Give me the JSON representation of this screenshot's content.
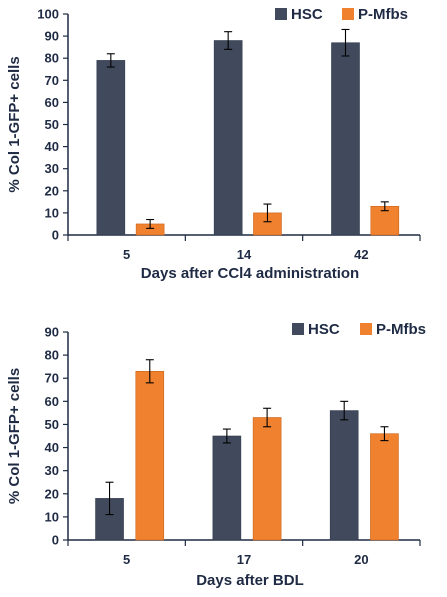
{
  "colors": {
    "hsc": "#404a5c",
    "pmfbs": "#f0812e",
    "axis": "#1f2b44",
    "text": "#1f2b44"
  },
  "chart_data": [
    {
      "type": "bar",
      "categories": [
        "5",
        "14",
        "42"
      ],
      "series": [
        {
          "name": "HSC",
          "values": [
            79,
            88,
            87
          ],
          "errors": [
            3,
            4,
            6
          ]
        },
        {
          "name": "P-Mfbs",
          "values": [
            5,
            10,
            13
          ],
          "errors": [
            2,
            4,
            2
          ]
        }
      ],
      "title": "",
      "xlabel": "Days after CCl4 administration",
      "ylabel": "% Col 1-GFP+ cells",
      "ylim": [
        0,
        100
      ],
      "yticks": [
        "0",
        "10",
        "20",
        "30",
        "40",
        "50",
        "60",
        "70",
        "80",
        "90",
        "100"
      ],
      "grid": false,
      "legend": "top-right"
    },
    {
      "type": "bar",
      "categories": [
        "5",
        "17",
        "20"
      ],
      "series": [
        {
          "name": "HSC",
          "values": [
            18,
            45,
            56
          ],
          "errors": [
            7,
            3,
            4
          ]
        },
        {
          "name": "P-Mfbs",
          "values": [
            73,
            53,
            46
          ],
          "errors": [
            5,
            4,
            3
          ]
        }
      ],
      "title": "",
      "xlabel": "Days after BDL",
      "ylabel": "% Col 1-GFP+ cells",
      "ylim": [
        0,
        90
      ],
      "yticks": [
        "0",
        "10",
        "20",
        "30",
        "40",
        "50",
        "60",
        "70",
        "80",
        "90"
      ],
      "grid": false,
      "legend": "top-right"
    }
  ]
}
